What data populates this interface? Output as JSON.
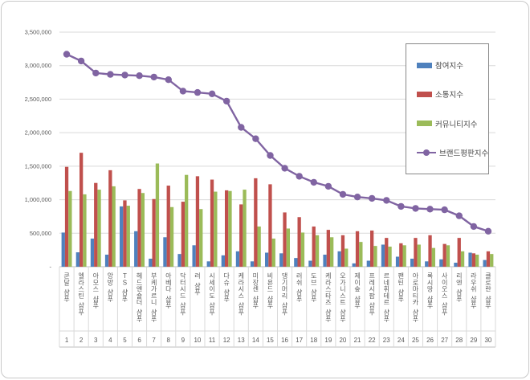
{
  "chart_data": {
    "type": "combo-bar-line",
    "title": "",
    "categories": [
      "쿤달 샴푸",
      "엘라스틴 샴푸",
      "아모스 샴푸",
      "앙방 샴푸",
      "TS 샴푸",
      "헤드앤숄더 샴푸",
      "부케가르니 샴푸",
      "아베다 샴푸",
      "닥터시드 샴푸",
      "려 샴푸",
      "시세이도 샴푸",
      "다슈 샴푸",
      "케라시스 샴푸",
      "미장센 샴푸",
      "비욘드 샴푸",
      "댕기머리 샴푸",
      "러쉬 샴푸",
      "도브 샴푸",
      "케라스타즈 샴푸",
      "오가니스트 샴푸",
      "제이숲 샴푸",
      "프레시팝 샴푸",
      "르네휘테르 샴푸",
      "팬틴 샴푸",
      "아로마티카 샴푸",
      "록시땅 샴푸",
      "사이오스 샴푸",
      "리엔 샴푸",
      "라우쉬 샴푸",
      "클로란 샴푸"
    ],
    "ranks": [
      "1",
      "2",
      "3",
      "4",
      "5",
      "6",
      "7",
      "8",
      "9",
      "10",
      "11",
      "12",
      "13",
      "14",
      "15",
      "16",
      "17",
      "18",
      "19",
      "20",
      "21",
      "22",
      "23",
      "24",
      "25",
      "26",
      "27",
      "28",
      "29",
      "30"
    ],
    "series": [
      {
        "name": "참여지수",
        "type": "bar",
        "color": "#4F81BD",
        "values": [
          510000,
          215000,
          420000,
          180000,
          900000,
          530000,
          120000,
          440000,
          190000,
          320000,
          80000,
          170000,
          230000,
          80000,
          210000,
          200000,
          130000,
          90000,
          180000,
          230000,
          50000,
          90000,
          330000,
          150000,
          120000,
          80000,
          110000,
          60000,
          210000,
          100000
        ]
      },
      {
        "name": "소통지수",
        "type": "bar",
        "color": "#C0504D",
        "values": [
          1490000,
          1700000,
          1250000,
          1440000,
          990000,
          1160000,
          1010000,
          1210000,
          970000,
          1350000,
          1300000,
          1140000,
          930000,
          1320000,
          1230000,
          810000,
          740000,
          600000,
          550000,
          470000,
          530000,
          540000,
          430000,
          350000,
          430000,
          470000,
          340000,
          430000,
          200000,
          230000
        ]
      },
      {
        "name": "커뮤니티지수",
        "type": "bar",
        "color": "#9BBB59",
        "values": [
          1130000,
          1080000,
          1150000,
          1200000,
          910000,
          1100000,
          1540000,
          890000,
          1370000,
          860000,
          1120000,
          1130000,
          1150000,
          600000,
          420000,
          570000,
          510000,
          470000,
          440000,
          270000,
          370000,
          310000,
          300000,
          320000,
          330000,
          280000,
          320000,
          230000,
          180000,
          190000
        ]
      },
      {
        "name": "브랜드평판지수",
        "type": "line",
        "color": "#8064A2",
        "values": [
          3170000,
          3070000,
          2890000,
          2870000,
          2860000,
          2850000,
          2830000,
          2790000,
          2620000,
          2600000,
          2580000,
          2470000,
          2080000,
          1910000,
          1660000,
          1470000,
          1350000,
          1260000,
          1200000,
          1080000,
          1040000,
          1020000,
          990000,
          900000,
          870000,
          860000,
          850000,
          760000,
          600000,
          530000
        ]
      }
    ],
    "y_axis": {
      "min": 0,
      "max": 3500000,
      "tick_interval": 500000,
      "tick_labels": [
        "3,500,000",
        "3,000,000",
        "2,500,000",
        "2,000,000",
        "1,500,000",
        "1,000,000",
        "500,000",
        "-"
      ]
    },
    "legend_position": "right-top",
    "grid": true
  }
}
